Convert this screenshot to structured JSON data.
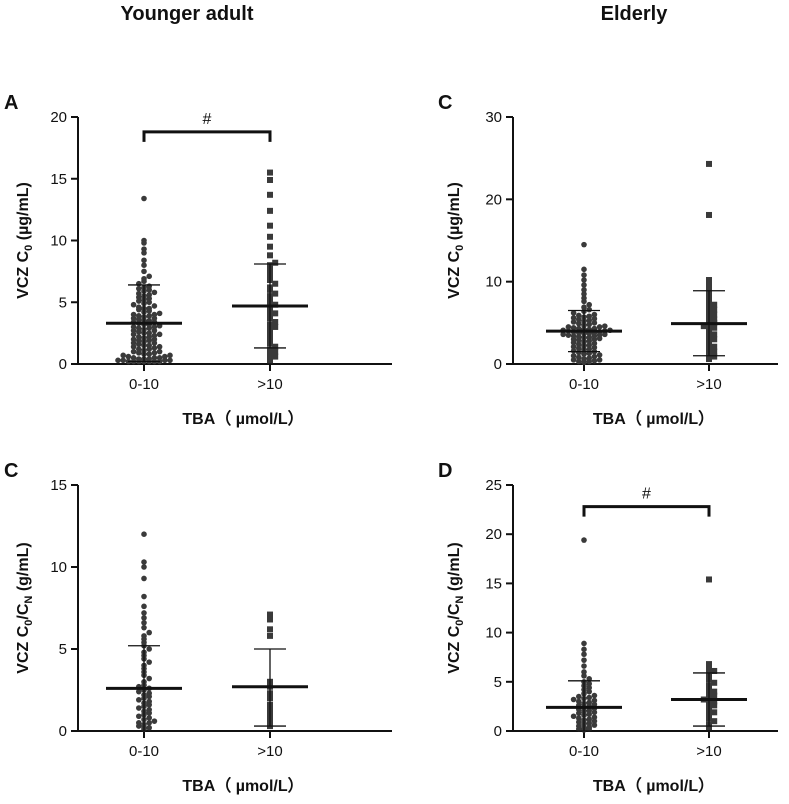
{
  "figure": {
    "column_titles": [
      "Younger adult",
      "Elderly"
    ]
  },
  "chart_data": [
    {
      "type": "scatter",
      "panel_label": "A",
      "group": "Younger adult",
      "categories": [
        "0-10",
        ">10"
      ],
      "xlabel": "TBA（ µmol/L）",
      "ylabel_parts": [
        "VCZ C",
        "0",
        " (µg/mL)"
      ],
      "ylim": [
        0,
        20
      ],
      "yticks": [
        0,
        5,
        10,
        15,
        20
      ],
      "yticks_labels": [
        "0",
        "5",
        "10",
        "15",
        "20"
      ],
      "series": [
        {
          "name": "0-10",
          "marker": "circle",
          "mean": 3.3,
          "sd_upper": 6.4,
          "sd_lower": 0.2,
          "values": [
            0.2,
            0.2,
            0.2,
            0.2,
            0.2,
            0.2,
            0.2,
            0.3,
            0.3,
            0.3,
            0.3,
            0.4,
            0.4,
            0.4,
            0.5,
            0.5,
            0.5,
            0.6,
            0.6,
            0.7,
            0.7,
            0.8,
            0.8,
            0.9,
            0.9,
            1.0,
            1.0,
            1.1,
            1.2,
            1.2,
            1.3,
            1.4,
            1.4,
            1.5,
            1.5,
            1.6,
            1.7,
            1.7,
            1.8,
            1.9,
            1.9,
            2.0,
            2.0,
            2.1,
            2.2,
            2.2,
            2.3,
            2.4,
            2.4,
            2.5,
            2.5,
            2.6,
            2.7,
            2.7,
            2.8,
            2.9,
            2.9,
            3.0,
            3.0,
            3.1,
            3.2,
            3.2,
            3.3,
            3.4,
            3.4,
            3.5,
            3.5,
            3.6,
            3.7,
            3.7,
            3.8,
            3.9,
            3.9,
            4.0,
            4.0,
            4.1,
            4.2,
            4.3,
            4.4,
            4.5,
            4.5,
            4.6,
            4.7,
            4.8,
            4.9,
            5.0,
            5.1,
            5.2,
            5.3,
            5.4,
            5.5,
            5.6,
            5.7,
            5.8,
            5.9,
            6.0,
            6.1,
            6.2,
            6.3,
            6.5,
            6.7,
            6.9,
            7.1,
            7.5,
            8.0,
            8.4,
            9.0,
            9.3,
            9.8,
            10.0,
            13.4
          ]
        },
        {
          "name": ">10",
          "marker": "square",
          "mean": 4.7,
          "sd_upper": 8.1,
          "sd_lower": 1.3,
          "values": [
            0.3,
            0.5,
            0.6,
            0.8,
            1.0,
            1.2,
            1.4,
            1.7,
            1.9,
            2.2,
            2.5,
            2.8,
            3.0,
            3.2,
            3.4,
            3.7,
            3.9,
            4.1,
            4.3,
            4.6,
            4.8,
            5.0,
            5.2,
            5.5,
            5.7,
            6.0,
            6.2,
            6.5,
            6.8,
            7.1,
            7.4,
            7.8,
            8.0,
            8.2,
            8.8,
            9.5,
            10.3,
            11.2,
            12.4,
            13.7,
            14.9,
            15.5
          ]
        }
      ],
      "significance": {
        "mark": "#",
        "between": [
          "0-10",
          ">10"
        ],
        "y": 18.8
      }
    },
    {
      "type": "scatter",
      "panel_label": "C",
      "group": "Elderly",
      "categories": [
        "0-10",
        ">10"
      ],
      "xlabel": "TBA（ µmol/L）",
      "ylabel_parts": [
        "VCZ C",
        "0",
        " (µg/mL)"
      ],
      "ylim": [
        0,
        30
      ],
      "yticks": [
        0,
        10,
        20,
        30
      ],
      "yticks_labels": [
        "0",
        "10",
        "20",
        "30"
      ],
      "series": [
        {
          "name": "0-10",
          "marker": "circle",
          "mean": 4.0,
          "sd_upper": 6.5,
          "sd_lower": 1.5,
          "values": [
            0.2,
            0.3,
            0.3,
            0.4,
            0.5,
            0.5,
            0.6,
            0.7,
            0.8,
            0.9,
            1.0,
            1.1,
            1.2,
            1.3,
            1.4,
            1.5,
            1.6,
            1.7,
            1.8,
            1.9,
            2.0,
            2.1,
            2.2,
            2.3,
            2.4,
            2.5,
            2.6,
            2.7,
            2.8,
            2.9,
            3.0,
            3.0,
            3.1,
            3.2,
            3.2,
            3.3,
            3.4,
            3.4,
            3.5,
            3.5,
            3.6,
            3.6,
            3.7,
            3.7,
            3.8,
            3.8,
            3.9,
            3.9,
            4.0,
            4.0,
            4.1,
            4.1,
            4.2,
            4.2,
            4.3,
            4.3,
            4.4,
            4.5,
            4.5,
            4.6,
            4.7,
            4.8,
            4.9,
            5.0,
            5.1,
            5.2,
            5.3,
            5.4,
            5.5,
            5.6,
            5.7,
            5.8,
            5.9,
            6.0,
            6.2,
            6.4,
            6.6,
            6.9,
            7.2,
            7.6,
            8.0,
            8.5,
            9.0,
            9.6,
            10.2,
            10.8,
            11.5,
            14.5
          ]
        },
        {
          "name": ">10",
          "marker": "square",
          "mean": 4.9,
          "sd_upper": 8.9,
          "sd_lower": 1.0,
          "values": [
            0.6,
            0.9,
            1.2,
            1.5,
            1.8,
            2.1,
            2.4,
            2.7,
            3.0,
            3.3,
            3.6,
            3.9,
            4.2,
            4.4,
            4.6,
            4.8,
            5.0,
            5.2,
            5.4,
            5.7,
            6.0,
            6.3,
            6.6,
            6.9,
            7.2,
            7.5,
            8.0,
            8.5,
            9.0,
            9.6,
            10.2,
            18.1,
            24.3
          ]
        }
      ]
    },
    {
      "type": "scatter",
      "panel_label": "C",
      "group": "Younger adult",
      "categories": [
        "0-10",
        ">10"
      ],
      "xlabel": "TBA（ µmol/L）",
      "ylabel_parts": [
        "VCZ C",
        "0",
        "/C",
        "N",
        " (g/mL)"
      ],
      "ylim": [
        0,
        15
      ],
      "yticks": [
        0,
        5,
        10,
        15
      ],
      "yticks_labels": [
        "0",
        "5",
        "10",
        "15"
      ],
      "series": [
        {
          "name": "0-10",
          "marker": "circle",
          "mean": 2.6,
          "sd_upper": 5.2,
          "sd_lower": 0.0,
          "values": [
            0.1,
            0.2,
            0.2,
            0.3,
            0.4,
            0.5,
            0.5,
            0.6,
            0.7,
            0.8,
            0.9,
            1.0,
            1.1,
            1.2,
            1.3,
            1.4,
            1.5,
            1.6,
            1.7,
            1.8,
            1.9,
            2.0,
            2.1,
            2.2,
            2.3,
            2.4,
            2.5,
            2.6,
            2.7,
            2.8,
            3.0,
            3.2,
            3.4,
            3.6,
            3.8,
            4.0,
            4.2,
            4.4,
            4.6,
            4.8,
            5.0,
            5.2,
            5.4,
            5.6,
            5.8,
            6.0,
            6.3,
            6.6,
            6.9,
            7.2,
            7.6,
            8.2,
            9.3,
            10.0,
            10.3,
            12.0
          ]
        },
        {
          "name": ">10",
          "marker": "square",
          "mean": 2.7,
          "sd_upper": 5.0,
          "sd_lower": 0.3,
          "values": [
            0.3,
            0.5,
            0.7,
            1.0,
            1.3,
            1.6,
            2.0,
            2.3,
            2.7,
            3.0,
            5.8,
            6.2,
            6.8,
            7.1
          ]
        }
      ]
    },
    {
      "type": "scatter",
      "panel_label": "D",
      "group": "Elderly",
      "categories": [
        "0-10",
        ">10"
      ],
      "xlabel": "TBA（ µmol/L）",
      "ylabel_parts": [
        "VCZ C",
        "0",
        "/C",
        "N",
        " (g/mL)"
      ],
      "ylim": [
        0,
        25
      ],
      "yticks": [
        0,
        5,
        10,
        15,
        20,
        25
      ],
      "yticks_labels": [
        "0",
        "5",
        "10",
        "15",
        "20",
        "25"
      ],
      "series": [
        {
          "name": "0-10",
          "marker": "circle",
          "mean": 2.4,
          "sd_upper": 5.1,
          "sd_lower": 0.0,
          "values": [
            0.1,
            0.2,
            0.2,
            0.3,
            0.4,
            0.5,
            0.6,
            0.7,
            0.8,
            0.9,
            1.0,
            1.1,
            1.2,
            1.3,
            1.4,
            1.5,
            1.6,
            1.7,
            1.8,
            1.9,
            2.0,
            2.1,
            2.2,
            2.3,
            2.4,
            2.5,
            2.6,
            2.7,
            2.8,
            2.9,
            3.0,
            3.1,
            3.2,
            3.3,
            3.4,
            3.5,
            3.6,
            3.8,
            4.0,
            4.2,
            4.4,
            4.6,
            4.8,
            5.0,
            5.3,
            5.6,
            6.0,
            6.6,
            7.2,
            7.8,
            8.3,
            8.9,
            19.4
          ]
        },
        {
          "name": ">10",
          "marker": "square",
          "mean": 3.2,
          "sd_upper": 5.9,
          "sd_lower": 0.5,
          "values": [
            0.4,
            0.7,
            1.0,
            1.3,
            1.6,
            1.9,
            2.1,
            2.4,
            2.6,
            2.8,
            3.0,
            3.2,
            3.4,
            3.6,
            3.8,
            4.0,
            4.3,
            4.6,
            4.9,
            5.2,
            5.5,
            5.8,
            6.1,
            6.4,
            6.8,
            15.4
          ]
        }
      ],
      "significance": {
        "mark": "#",
        "between": [
          "0-10",
          ">10"
        ],
        "y": 22.8
      }
    }
  ]
}
